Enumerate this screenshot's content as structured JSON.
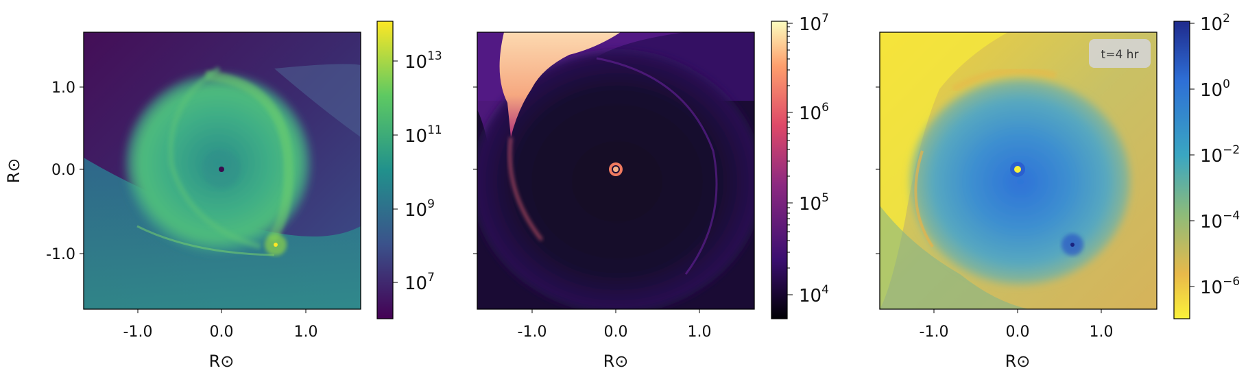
{
  "chart_data": [
    {
      "type": "heatmap",
      "title": "",
      "xlabel": "R⊙",
      "ylabel": "R⊙",
      "xlim": [
        -1.65,
        1.65
      ],
      "ylim": [
        -1.65,
        1.65
      ],
      "xticks": [
        "-1.0",
        "0.0",
        "1.0"
      ],
      "yticks": [
        "1.0",
        "0.0",
        "-1.0"
      ],
      "colormap": "viridis",
      "colorbar": {
        "scale": "log",
        "range": [
          1000000.0,
          100000000000000.0
        ],
        "tick_values": [
          10000000.0,
          1000000000.0,
          100000000000.0,
          10000000000000.0
        ],
        "tick_labels": [
          {
            "base": "10",
            "exp": "7"
          },
          {
            "base": "10",
            "exp": "9"
          },
          {
            "base": "10",
            "exp": "11"
          },
          {
            "base": "10",
            "exp": "13"
          }
        ]
      },
      "features": {
        "central_star": {
          "x": 0.0,
          "y": 0.0
        },
        "companion": {
          "x": 0.65,
          "y": -0.9
        }
      },
      "annotation": ""
    },
    {
      "type": "heatmap",
      "title": "",
      "xlabel": "R⊙",
      "ylabel": "",
      "xlim": [
        -1.65,
        1.65
      ],
      "ylim": [
        -1.65,
        1.65
      ],
      "xticks": [
        "-1.0",
        "0.0",
        "1.0"
      ],
      "yticks": [],
      "colormap": "magma",
      "colorbar": {
        "scale": "log",
        "range": [
          5000,
          10000000.0
        ],
        "tick_values": [
          10000.0,
          100000.0,
          1000000.0,
          10000000.0
        ],
        "tick_labels": [
          {
            "base": "10",
            "exp": "4"
          },
          {
            "base": "10",
            "exp": "5"
          },
          {
            "base": "10",
            "exp": "6"
          },
          {
            "base": "10",
            "exp": "7"
          }
        ]
      },
      "features": {
        "central_star": {
          "x": 0.0,
          "y": 0.0
        }
      },
      "annotation": ""
    },
    {
      "type": "heatmap",
      "title": "",
      "xlabel": "R⊙",
      "ylabel": "",
      "xlim": [
        -1.65,
        1.65
      ],
      "ylim": [
        -1.65,
        1.65
      ],
      "xticks": [
        "-1.0",
        "0.0",
        "1.0"
      ],
      "yticks": [],
      "colormap": "cividis-blue (reversed)",
      "colorbar": {
        "scale": "log",
        "range": [
          1e-07,
          100.0
        ],
        "tick_values": [
          100.0,
          1.0,
          0.01,
          0.0001,
          1e-06
        ],
        "tick_labels": [
          {
            "base": "10",
            "exp": "2"
          },
          {
            "base": "10",
            "exp": "0"
          },
          {
            "base": "10",
            "exp": "−2"
          },
          {
            "base": "10",
            "exp": "−4"
          },
          {
            "base": "10",
            "exp": "−6"
          }
        ]
      },
      "features": {
        "central_star": {
          "x": 0.0,
          "y": 0.0
        },
        "companion": {
          "x": 0.65,
          "y": -0.9
        }
      },
      "annotation": "t=4 hr"
    }
  ],
  "colors": {
    "viridis": [
      "#440154",
      "#3b528b",
      "#21918c",
      "#5ec962",
      "#fde725"
    ],
    "magma": [
      "#000004",
      "#3b0f70",
      "#8c2981",
      "#de4968",
      "#fe9f6d",
      "#fcfdbf"
    ],
    "blueyellow": [
      "#1f2a8c",
      "#2e6fd6",
      "#3aa6c2",
      "#8dbb7a",
      "#e8b94a",
      "#fbf23a"
    ]
  }
}
